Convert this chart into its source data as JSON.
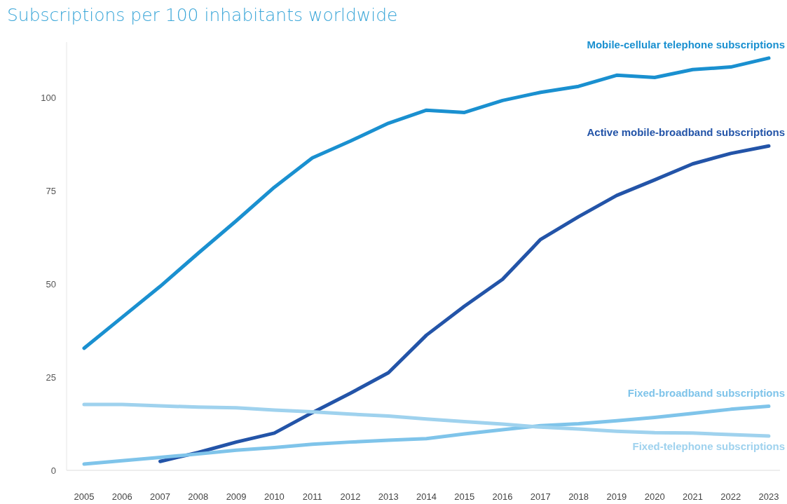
{
  "chart_data": {
    "type": "line",
    "title": "Subscriptions per 100 inhabitants worldwide",
    "categories": [
      "2005",
      "2006",
      "2007",
      "2008",
      "2009",
      "2010",
      "2011",
      "2012",
      "2013",
      "2014",
      "2015",
      "2016",
      "2017",
      "2018",
      "2019",
      "2020",
      "2021",
      "2022",
      "2023"
    ],
    "ylim": [
      0,
      115
    ],
    "yticks": [
      0,
      25,
      50,
      75,
      100
    ],
    "grid": false,
    "line_style": "solid",
    "marker": "none",
    "series": [
      {
        "name": "Mobile-cellular telephone subscriptions",
        "color": "#1a90d0",
        "values": [
          32.8,
          41.1,
          49.4,
          58.3,
          67.0,
          76.0,
          83.9,
          88.4,
          93.2,
          96.7,
          96.1,
          99.3,
          101.5,
          103.1,
          106.1,
          105.5,
          107.6,
          108.3,
          110.7
        ]
      },
      {
        "name": "Active mobile-broadband subscriptions",
        "color": "#2354a8",
        "values": [
          null,
          null,
          2.4,
          4.8,
          7.6,
          10.0,
          15.5,
          20.7,
          26.2,
          36.3,
          44.1,
          51.3,
          62.0,
          68.1,
          73.8,
          78.0,
          82.3,
          85.1,
          87.1
        ]
      },
      {
        "name": "Fixed-broadband subscriptions",
        "color": "#7fc4ea",
        "values": [
          1.7,
          2.6,
          3.5,
          4.4,
          5.4,
          6.1,
          7.0,
          7.6,
          8.1,
          8.5,
          9.8,
          10.9,
          12.0,
          12.5,
          13.3,
          14.2,
          15.3,
          16.4,
          17.2
        ]
      },
      {
        "name": "Fixed-telephone subscriptions",
        "color": "#9fd2ee",
        "values": [
          17.7,
          17.7,
          17.3,
          17.0,
          16.8,
          16.2,
          15.7,
          15.1,
          14.6,
          13.8,
          13.1,
          12.4,
          11.6,
          11.1,
          10.5,
          10.1,
          10.0,
          9.6,
          9.2
        ]
      }
    ]
  }
}
